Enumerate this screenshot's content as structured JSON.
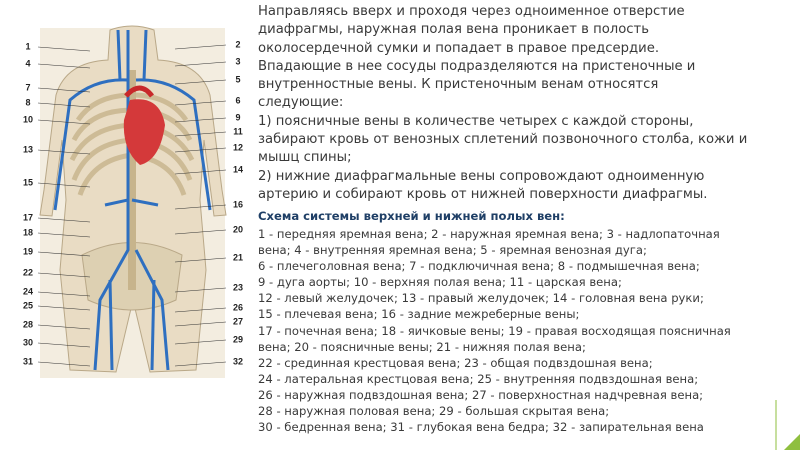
{
  "figure": {
    "labels_left": [
      "1",
      "4",
      "7",
      "8",
      "10",
      "13",
      "15",
      "17",
      "18",
      "19",
      "22",
      "24",
      "25",
      "28",
      "30",
      "31"
    ],
    "labels_right": [
      "2",
      "3",
      "5",
      "6",
      "9",
      "11",
      "12",
      "14",
      "16",
      "20",
      "21",
      "23",
      "26",
      "27",
      "29",
      "32"
    ]
  },
  "text": {
    "paragraph": [
      "Направляясь вверх и проходя через одноименное отверстие",
      "диафрагмы, наружная полая вена проникает в полость",
      "околосердечной сумки и попадает в правое предсердие.",
      "Впадающие в нее сосуды подразделяются на пристеночные и",
      "внутренностные вены. К пристеночным венам относятся",
      "следующие:",
      "1) поясничные вены в количестве четырех с каждой стороны,",
      "забирают кровь от венозных сплетений позвоночного столба, кожи и",
      "мышц спины;",
      "2) нижние диафрагмальные вены сопровождают одноименную",
      "артерию и собирают кровь от нижней поверхности диафрагмы."
    ],
    "heading": "Схема системы верхней и нижней полых вен:",
    "legend": [
      "1 - передняя яремная вена; 2 - наружная яремная вена; 3 - надлопаточная",
      "вена; 4 - внутренняя яремная вена; 5 - яремная венозная дуга;",
      "6 - плечеголовная вена; 7 - подключичная вена; 8 - подмышечная вена;",
      "9 - дуга аорты; 10 - верхняя полая вена; 11 - царская вена;",
      "12 - левый желудочек; 13 - правый желудочек; 14 - головная вена руки;",
      "15 - плечевая вена; 16 - задние межреберные вены;",
      "17 - почечная вена; 18 - яичковые вены; 19 - правая восходящая поясничная",
      "вена; 20 - поясничные вены; 21 - нижняя полая вена;",
      "22 - срединная крестцовая вена; 23 - общая подвздошная вена;",
      "24 - латеральная крестцовая вена; 25 - внутренняя подвздошная вена;",
      "26 - наружная подвздошная вена; 27 - поверхностная надчревная вена;",
      "28 - наружная половая вена; 29 - большая скрытая вена;",
      "30 -  бедренная вена; 31 - глубокая вена бедра; 32 - запирательная вена"
    ]
  }
}
